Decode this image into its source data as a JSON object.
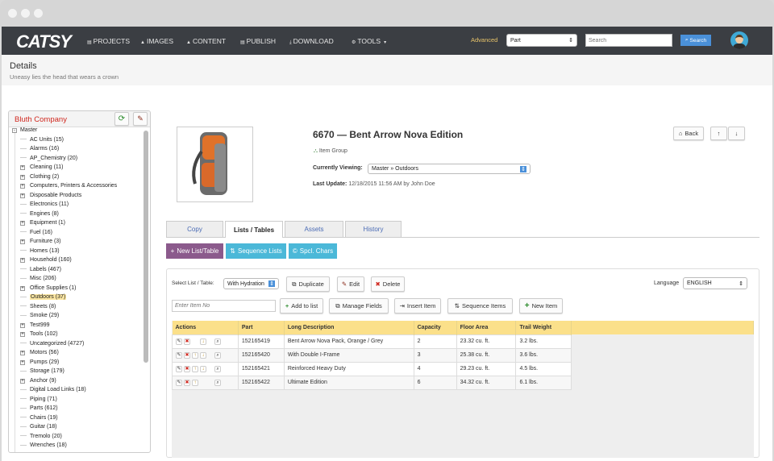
{
  "nav": {
    "logo": "CATSY",
    "items": [
      {
        "label": "PROJECTS",
        "icon": "▤"
      },
      {
        "label": "IMAGES",
        "icon": "▲"
      },
      {
        "label": "CONTENT",
        "icon": "▲"
      },
      {
        "label": "PUBLISH",
        "icon": "▤"
      },
      {
        "label": "DOWNLOAD",
        "icon": "⤓"
      },
      {
        "label": "TOOLS",
        "icon": "⚙"
      }
    ],
    "advanced": "Advanced",
    "search_type": "Part",
    "search_placeholder": "Search",
    "search_button": "Search",
    "accent": "#4a90d9"
  },
  "header": {
    "title": "Details",
    "subtitle": "Uneasy lies the head that wears a crown"
  },
  "tree": {
    "title": "Bluth Company",
    "root": "Master",
    "items": [
      {
        "label": "AC Units (15)",
        "expandable": false
      },
      {
        "label": "Alarms (16)",
        "expandable": false
      },
      {
        "label": "AP_Chemistry (20)",
        "expandable": false
      },
      {
        "label": "Cleaning (11)",
        "expandable": true
      },
      {
        "label": "Clothing (2)",
        "expandable": true
      },
      {
        "label": "Computers, Printers & Accessories",
        "expandable": true
      },
      {
        "label": "Disposable Products",
        "expandable": true
      },
      {
        "label": "Electronics (11)",
        "expandable": false
      },
      {
        "label": "Engines (8)",
        "expandable": false
      },
      {
        "label": "Equipment (1)",
        "expandable": true
      },
      {
        "label": "Fuel (16)",
        "expandable": false
      },
      {
        "label": "Furniture (3)",
        "expandable": true
      },
      {
        "label": "Homes (13)",
        "expandable": false
      },
      {
        "label": "Household (160)",
        "expandable": true
      },
      {
        "label": "Labels (467)",
        "expandable": false
      },
      {
        "label": "Misc (206)",
        "expandable": false
      },
      {
        "label": "Office Supplies (1)",
        "expandable": true
      },
      {
        "label": "Outdoors (37)",
        "expandable": false,
        "selected": true
      },
      {
        "label": "Sheets (8)",
        "expandable": false
      },
      {
        "label": "Smoke (29)",
        "expandable": false
      },
      {
        "label": "Test999",
        "expandable": true
      },
      {
        "label": "Tools (102)",
        "expandable": true
      },
      {
        "label": "Uncategorized (4727)",
        "expandable": false
      },
      {
        "label": "Motors (56)",
        "expandable": true
      },
      {
        "label": "Pumps (29)",
        "expandable": true
      },
      {
        "label": "Storage (179)",
        "expandable": false
      },
      {
        "label": "Anchor (9)",
        "expandable": true
      },
      {
        "label": "Digital Load Links (18)",
        "expandable": false
      },
      {
        "label": "Piping (71)",
        "expandable": false
      },
      {
        "label": "Parts (612)",
        "expandable": false
      },
      {
        "label": "Chairs (19)",
        "expandable": false
      },
      {
        "label": "Guitar (18)",
        "expandable": false
      },
      {
        "label": "Tremolo (20)",
        "expandable": false
      },
      {
        "label": "Wrenches (18)",
        "expandable": false
      }
    ]
  },
  "item": {
    "title": "6670 — Bent Arrow Nova Edition",
    "type": "Item Group",
    "viewing_label": "Currently Viewing:",
    "viewing_value": "Master » Outdoors",
    "update_label": "Last Update:",
    "update_value": "12/18/2015 11:56 AM by John Doe",
    "back": "Back"
  },
  "tabs": [
    {
      "label": "Copy"
    },
    {
      "label": "Lists / Tables",
      "active": true
    },
    {
      "label": "Assets"
    },
    {
      "label": "History"
    }
  ],
  "actions": {
    "new_list": "New List/Table",
    "sequence_lists": "Sequence Lists",
    "spcl_chars": "Spcl. Chars"
  },
  "list": {
    "select_label": "Select List / Table:",
    "select_value": "With Hydration",
    "duplicate": "Duplicate",
    "edit": "Edit",
    "delete": "Delete",
    "language_label": "Language",
    "language_value": "ENGLISH",
    "item_placeholder": "Enter Item No",
    "add_to_list": "Add to list",
    "manage_fields": "Manage Fields",
    "insert_item": "Insert Item",
    "sequence_items": "Sequence Items",
    "new_item": "New Item"
  },
  "table": {
    "columns": [
      "Actions",
      "Part",
      "Long Description",
      "Capacity",
      "Floor Area",
      "Trail Weight"
    ],
    "rows": [
      {
        "part": "152165419",
        "desc": "Bent Arrow Nova Pack, Orange / Grey",
        "capacity": "2",
        "area": "23.32 cu. ft.",
        "weight": "3.2 lbs.",
        "up": false,
        "down": true
      },
      {
        "part": "152165420",
        "desc": "With Double I-Frame",
        "capacity": "3",
        "area": "25.38 cu. ft.",
        "weight": "3.6 lbs.",
        "up": true,
        "down": true
      },
      {
        "part": "152165421",
        "desc": "Reinforced Heavy Duty",
        "capacity": "4",
        "area": "29.23 cu. ft.",
        "weight": "4.5 lbs.",
        "up": true,
        "down": true
      },
      {
        "part": "152165422",
        "desc": "Ultimate Edition",
        "capacity": "6",
        "area": "34.32 cu. ft.",
        "weight": "6.1 lbs.",
        "up": true,
        "down": false
      }
    ]
  }
}
